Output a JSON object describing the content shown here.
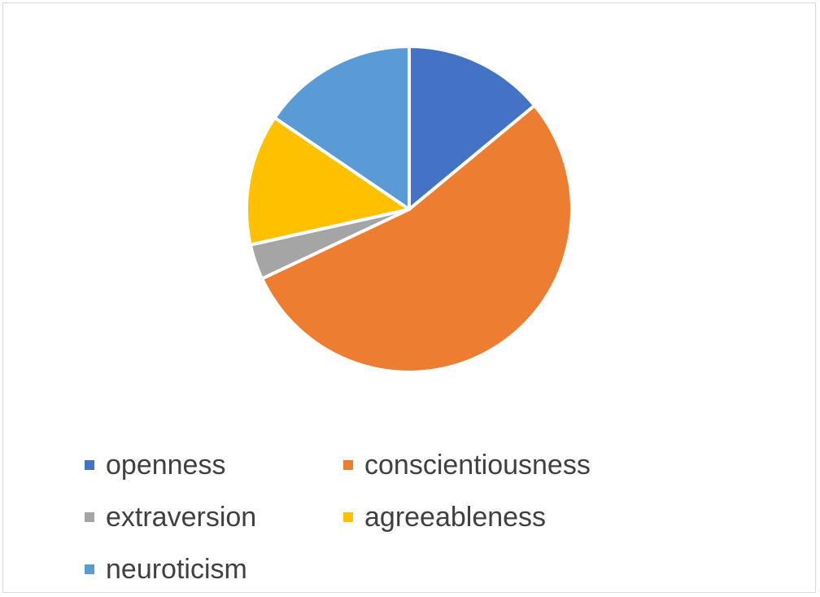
{
  "chart_data": {
    "type": "pie",
    "title": "",
    "categories": [
      "openness",
      "conscientiousness",
      "extraversion",
      "agreeableness",
      "neuroticism"
    ],
    "values": [
      14,
      54,
      3.5,
      13,
      15.5
    ],
    "colors": [
      "#4472C4",
      "#ED7D31",
      "#A5A5A5",
      "#FFC000",
      "#5B9BD5"
    ],
    "legend_position": "bottom"
  }
}
